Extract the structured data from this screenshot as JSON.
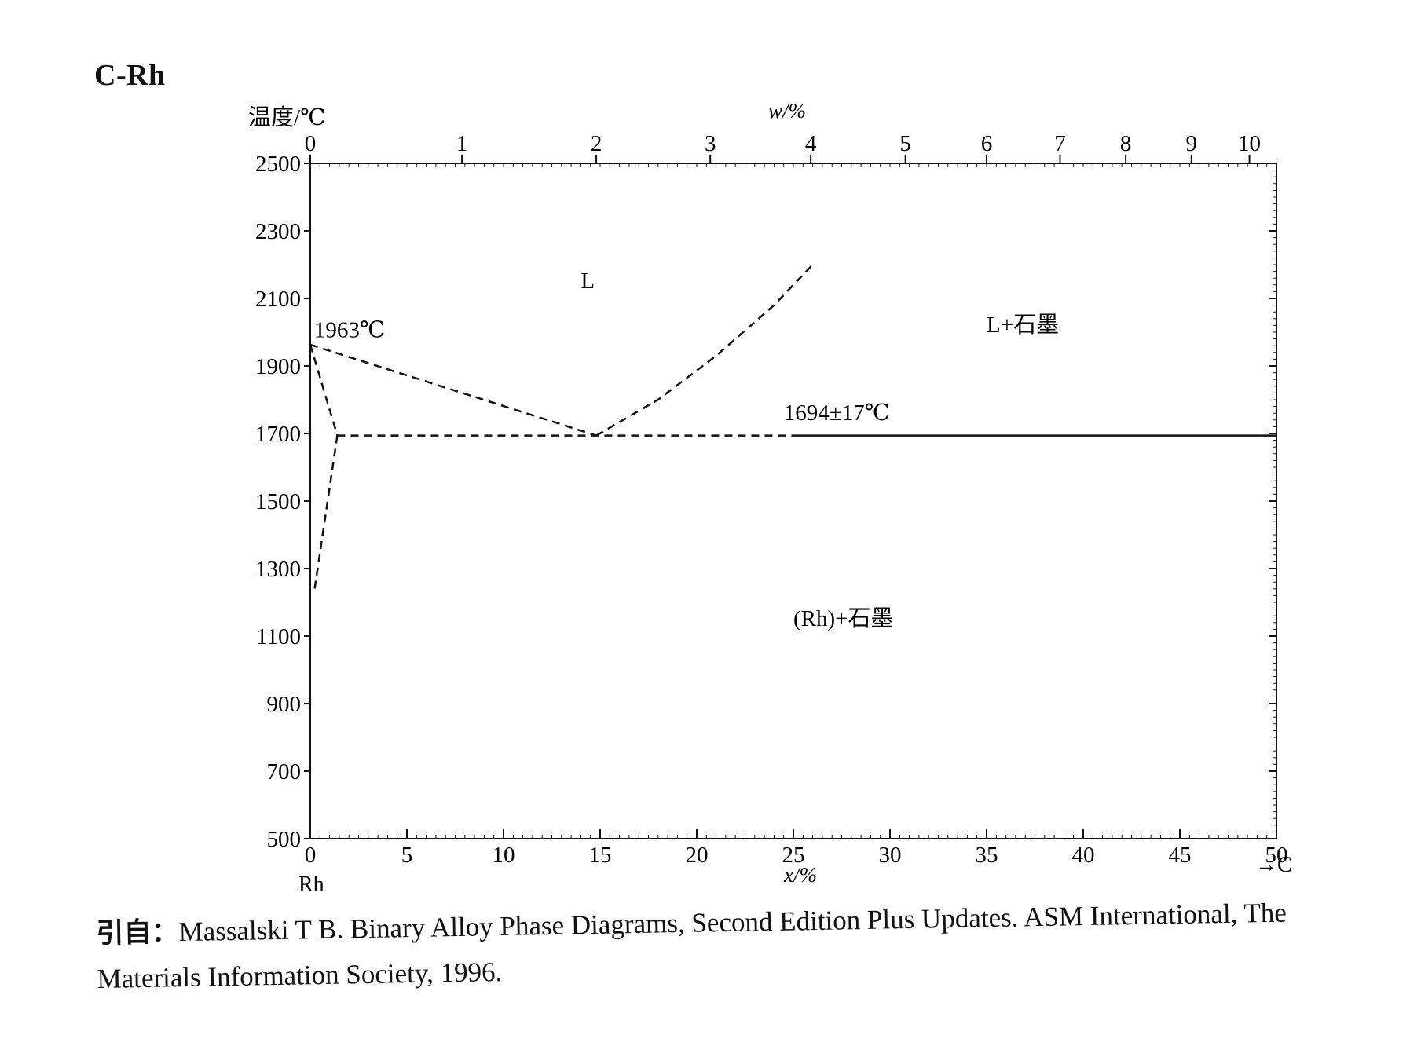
{
  "title": "C-Rh",
  "chart_data": {
    "type": "line",
    "y_axis": {
      "label": "温度/℃",
      "ylim": [
        500,
        2500
      ],
      "ticks": [
        2500,
        2300,
        2100,
        1900,
        1700,
        1500,
        1300,
        1100,
        900,
        700,
        500
      ]
    },
    "x_axis_bottom": {
      "label": "x/%",
      "xlim": [
        0,
        50
      ],
      "ticks": [
        0,
        5,
        10,
        15,
        20,
        25,
        30,
        35,
        40,
        45,
        50
      ],
      "left_end_label": "Rh",
      "right_end_label": "→C"
    },
    "x_axis_top": {
      "label": "w/%",
      "ticks": [
        {
          "w": 0,
          "x": 0
        },
        {
          "w": 1,
          "x": 7.85
        },
        {
          "w": 2,
          "x": 14.8
        },
        {
          "w": 3,
          "x": 20.7
        },
        {
          "w": 4,
          "x": 25.9
        },
        {
          "w": 5,
          "x": 30.8
        },
        {
          "w": 6,
          "x": 35.0
        },
        {
          "w": 7,
          "x": 38.8
        },
        {
          "w": 8,
          "x": 42.2
        },
        {
          "w": 9,
          "x": 45.6
        },
        {
          "w": 10,
          "x": 48.6
        }
      ]
    },
    "series": [
      {
        "style": "dashed",
        "points": [
          [
            0,
            1963
          ],
          [
            14.8,
            1694
          ]
        ]
      },
      {
        "style": "dashed",
        "points": [
          [
            14.8,
            1694
          ],
          [
            18.0,
            1800
          ],
          [
            21.0,
            1930
          ],
          [
            24.0,
            2080
          ],
          [
            26.0,
            2200
          ]
        ]
      },
      {
        "style": "dashed",
        "points": [
          [
            0,
            1963
          ],
          [
            1.4,
            1694
          ]
        ]
      },
      {
        "style": "dashed",
        "points": [
          [
            1.4,
            1694
          ],
          [
            0.2,
            1230
          ]
        ]
      },
      {
        "style": "dashed",
        "points": [
          [
            1.4,
            1694
          ],
          [
            25.0,
            1694
          ]
        ]
      },
      {
        "style": "solid",
        "points": [
          [
            25.0,
            1694
          ],
          [
            50,
            1694
          ]
        ]
      }
    ],
    "annotations": [
      {
        "text": "L",
        "x": 14,
        "y": 2130
      },
      {
        "text": "L+石墨",
        "x": 35,
        "y": 2000
      },
      {
        "text": "(Rh)+石墨",
        "x": 25,
        "y": 1130
      },
      {
        "text": "1963℃",
        "x": 0.2,
        "y": 1985
      },
      {
        "text": "1694±17℃",
        "x": 24.5,
        "y": 1740
      }
    ],
    "grid": false
  },
  "citation": {
    "prefix": "引自：",
    "line1": "Massalski T B. Binary Alloy Phase Diagrams, Second Edition Plus Updates. ASM International, The",
    "line2": "Materials Information Society, 1996."
  }
}
